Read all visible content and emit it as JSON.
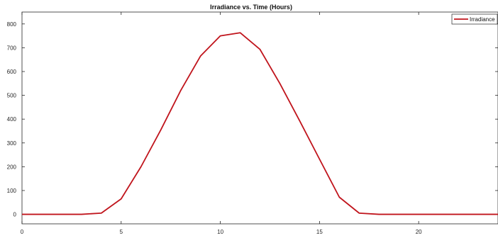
{
  "chart_data": {
    "type": "line",
    "title": "Irradiance vs. Time (Hours)",
    "xlabel": "",
    "ylabel": "",
    "xlim": [
      0,
      24
    ],
    "ylim": [
      -40,
      850
    ],
    "xticks": [
      0,
      5,
      10,
      15,
      20
    ],
    "yticks": [
      0,
      100,
      200,
      300,
      400,
      500,
      600,
      700,
      800
    ],
    "grid": false,
    "legend_position": "top-right",
    "series": [
      {
        "name": "Irradiance",
        "color": "#c0141c",
        "x": [
          0,
          1,
          2,
          3,
          4,
          5,
          6,
          7,
          8,
          9,
          10,
          11,
          12,
          13,
          14,
          15,
          16,
          17,
          18,
          19,
          20,
          21,
          22,
          23,
          24
        ],
        "y": [
          0,
          0,
          0,
          0,
          5,
          65,
          200,
          355,
          520,
          665,
          750,
          763,
          693,
          550,
          393,
          232,
          72,
          5,
          0,
          0,
          0,
          0,
          0,
          0,
          0
        ]
      }
    ]
  }
}
